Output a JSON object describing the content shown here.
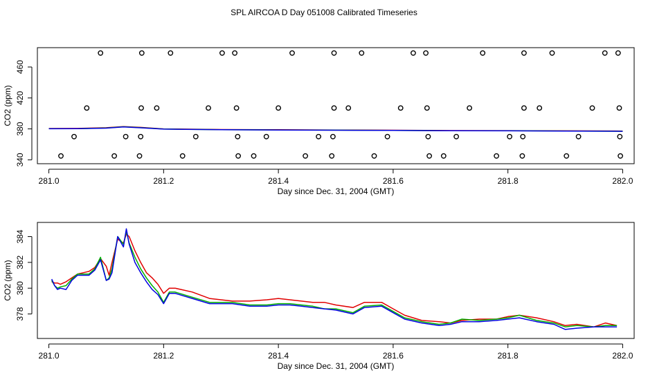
{
  "title": "SPL AIRCOA D  Day 051008  Calibrated Timeseries",
  "colors": {
    "red": "#e00000",
    "green": "#00b000",
    "blue": "#0000e0",
    "axis": "#000000"
  },
  "chart_data": [
    {
      "type": "line+scatter",
      "xlabel": "Day since Dec. 31, 2004 (GMT)",
      "ylabel": "CO2 (ppm)",
      "xlim": [
        280.98,
        282.02
      ],
      "ylim": [
        335,
        485
      ],
      "xticks": [
        281.0,
        281.2,
        281.4,
        281.6,
        281.8,
        282.0
      ],
      "xtick_labels": [
        "281.0",
        "281.2",
        "281.4",
        "281.6",
        "281.8",
        "282.0"
      ],
      "yticks": [
        340,
        380,
        420,
        460
      ],
      "ytick_labels": [
        "340",
        "380",
        "420",
        "460"
      ],
      "scatter": {
        "marker": "open-circle",
        "points": [
          [
            281.09,
            478
          ],
          [
            281.162,
            478
          ],
          [
            281.212,
            478
          ],
          [
            281.302,
            478
          ],
          [
            281.324,
            478
          ],
          [
            281.424,
            478
          ],
          [
            281.497,
            478
          ],
          [
            281.545,
            478
          ],
          [
            281.635,
            478
          ],
          [
            281.657,
            478
          ],
          [
            281.756,
            478
          ],
          [
            281.828,
            478
          ],
          [
            281.877,
            478
          ],
          [
            281.969,
            478
          ],
          [
            281.992,
            478
          ],
          [
            281.066,
            407
          ],
          [
            281.161,
            407
          ],
          [
            281.188,
            407
          ],
          [
            281.278,
            407
          ],
          [
            281.327,
            407
          ],
          [
            281.4,
            407
          ],
          [
            281.497,
            407
          ],
          [
            281.522,
            407
          ],
          [
            281.613,
            407
          ],
          [
            281.659,
            407
          ],
          [
            281.733,
            407
          ],
          [
            281.828,
            407
          ],
          [
            281.855,
            407
          ],
          [
            281.947,
            407
          ],
          [
            281.994,
            407
          ],
          [
            281.044,
            370
          ],
          [
            281.134,
            370
          ],
          [
            281.16,
            370
          ],
          [
            281.256,
            370
          ],
          [
            281.329,
            370
          ],
          [
            281.379,
            370
          ],
          [
            281.47,
            370
          ],
          [
            281.495,
            370
          ],
          [
            281.59,
            370
          ],
          [
            281.661,
            370
          ],
          [
            281.71,
            370
          ],
          [
            281.803,
            370
          ],
          [
            281.826,
            370
          ],
          [
            281.923,
            370
          ],
          [
            281.995,
            370
          ],
          [
            281.021,
            345
          ],
          [
            281.114,
            345
          ],
          [
            281.158,
            345
          ],
          [
            281.233,
            345
          ],
          [
            281.33,
            345
          ],
          [
            281.357,
            345
          ],
          [
            281.447,
            345
          ],
          [
            281.493,
            345
          ],
          [
            281.567,
            345
          ],
          [
            281.663,
            345
          ],
          [
            281.688,
            345
          ],
          [
            281.78,
            345
          ],
          [
            281.825,
            345
          ],
          [
            281.902,
            345
          ],
          [
            281.996,
            345
          ]
        ]
      },
      "series": [
        {
          "name": "red",
          "color": "#e00000",
          "x": [
            281.0,
            281.05,
            281.1,
            281.13,
            281.16,
            281.2,
            281.3,
            281.4,
            281.5,
            281.6,
            281.7,
            281.8,
            281.9,
            282.0
          ],
          "y": [
            380.5,
            380.6,
            381.5,
            383.0,
            382.0,
            380.0,
            379.2,
            378.9,
            378.6,
            378.3,
            377.9,
            377.8,
            377.5,
            377.2
          ]
        },
        {
          "name": "green",
          "color": "#00b000",
          "x": [
            281.0,
            281.05,
            281.1,
            281.13,
            281.16,
            281.2,
            281.3,
            281.4,
            281.5,
            281.6,
            281.7,
            281.8,
            281.9,
            282.0
          ],
          "y": [
            380.3,
            380.4,
            381.2,
            382.8,
            381.6,
            379.8,
            379.0,
            378.7,
            378.4,
            378.1,
            377.7,
            377.6,
            377.3,
            377.0
          ]
        },
        {
          "name": "blue",
          "color": "#0000e0",
          "x": [
            281.0,
            281.05,
            281.1,
            281.13,
            281.16,
            281.2,
            281.3,
            281.4,
            281.5,
            281.6,
            281.7,
            281.8,
            281.9,
            282.0
          ],
          "y": [
            380.2,
            380.3,
            381.0,
            382.6,
            381.4,
            379.7,
            378.9,
            378.6,
            378.3,
            378.0,
            377.6,
            377.5,
            377.2,
            376.9
          ]
        }
      ]
    },
    {
      "type": "line",
      "xlabel": "Day since Dec. 31, 2004 (GMT)",
      "ylabel": "CO2 (ppm)",
      "xlim": [
        280.98,
        282.02
      ],
      "ylim": [
        376.1,
        385.1
      ],
      "xticks": [
        281.0,
        281.2,
        281.4,
        281.6,
        281.8,
        282.0
      ],
      "xtick_labels": [
        "281.0",
        "281.2",
        "281.4",
        "281.6",
        "281.8",
        "282.0"
      ],
      "yticks": [
        378,
        380,
        382,
        384
      ],
      "ytick_labels": [
        "378",
        "380",
        "382",
        "384"
      ],
      "series": [
        {
          "name": "red",
          "color": "#e00000",
          "x": [
            281.005,
            281.01,
            281.015,
            281.02,
            281.03,
            281.04,
            281.05,
            281.06,
            281.07,
            281.08,
            281.09,
            281.1,
            281.105,
            281.11,
            281.12,
            281.13,
            281.135,
            281.14,
            281.15,
            281.16,
            281.17,
            281.18,
            281.19,
            281.2,
            281.21,
            281.22,
            281.25,
            281.28,
            281.3,
            281.32,
            281.35,
            281.38,
            281.4,
            281.42,
            281.44,
            281.46,
            281.48,
            281.5,
            281.53,
            281.55,
            281.58,
            281.6,
            281.62,
            281.65,
            281.68,
            281.7,
            281.72,
            281.75,
            281.78,
            281.8,
            281.82,
            281.85,
            281.88,
            281.9,
            281.92,
            281.95,
            281.97,
            281.99
          ],
          "y": [
            380.5,
            380.4,
            380.4,
            380.3,
            380.5,
            380.8,
            381.1,
            381.2,
            381.3,
            381.6,
            382.3,
            381.7,
            381.0,
            382.0,
            383.8,
            383.5,
            384.2,
            384.0,
            382.9,
            382.0,
            381.2,
            380.8,
            380.3,
            379.6,
            380.0,
            380.0,
            379.7,
            379.2,
            379.1,
            379.0,
            379.0,
            379.1,
            379.2,
            379.1,
            379.0,
            378.9,
            378.9,
            378.7,
            378.5,
            378.9,
            378.9,
            378.4,
            377.9,
            377.5,
            377.4,
            377.3,
            377.5,
            377.6,
            377.6,
            377.8,
            377.9,
            377.7,
            377.4,
            377.1,
            377.2,
            377.0,
            377.3,
            377.1
          ]
        },
        {
          "name": "green",
          "color": "#00b000",
          "x": [
            281.005,
            281.01,
            281.015,
            281.02,
            281.03,
            281.04,
            281.05,
            281.06,
            281.07,
            281.08,
            281.09,
            281.1,
            281.105,
            281.11,
            281.12,
            281.13,
            281.135,
            281.14,
            281.15,
            281.16,
            281.17,
            281.18,
            281.19,
            281.2,
            281.21,
            281.22,
            281.25,
            281.28,
            281.3,
            281.32,
            281.35,
            281.38,
            281.4,
            281.42,
            281.44,
            281.46,
            281.48,
            281.5,
            281.53,
            281.55,
            281.58,
            281.6,
            281.62,
            281.65,
            281.68,
            281.7,
            281.72,
            281.75,
            281.78,
            281.8,
            281.82,
            281.85,
            281.88,
            281.9,
            281.92,
            281.95,
            281.97,
            281.99
          ],
          "y": [
            380.6,
            380.2,
            380.0,
            380.1,
            380.2,
            380.7,
            381.1,
            381.1,
            381.1,
            381.5,
            382.4,
            380.6,
            380.8,
            381.5,
            384.0,
            383.4,
            384.4,
            383.5,
            382.4,
            381.5,
            380.8,
            380.2,
            379.7,
            378.9,
            379.7,
            379.7,
            379.3,
            378.9,
            378.9,
            378.9,
            378.7,
            378.7,
            378.8,
            378.8,
            378.7,
            378.6,
            378.4,
            378.4,
            378.1,
            378.6,
            378.7,
            378.2,
            377.7,
            377.4,
            377.2,
            377.3,
            377.6,
            377.5,
            377.6,
            377.7,
            377.9,
            377.5,
            377.3,
            377.0,
            377.1,
            377.0,
            377.1,
            377.1
          ]
        },
        {
          "name": "blue",
          "color": "#0000e0",
          "x": [
            281.005,
            281.01,
            281.015,
            281.02,
            281.03,
            281.04,
            281.05,
            281.06,
            281.07,
            281.08,
            281.09,
            281.1,
            281.105,
            281.11,
            281.12,
            281.13,
            281.135,
            281.14,
            281.15,
            281.16,
            281.17,
            281.18,
            281.19,
            281.2,
            281.21,
            281.22,
            281.25,
            281.28,
            281.3,
            281.32,
            281.35,
            281.38,
            281.4,
            281.42,
            281.44,
            281.46,
            281.48,
            281.5,
            281.53,
            281.55,
            281.58,
            281.6,
            281.62,
            281.65,
            281.68,
            281.7,
            281.72,
            281.75,
            281.78,
            281.8,
            281.82,
            281.85,
            281.88,
            281.9,
            281.92,
            281.95,
            281.97,
            281.99
          ],
          "y": [
            380.7,
            380.2,
            379.9,
            380.0,
            379.9,
            380.6,
            381.0,
            381.0,
            381.0,
            381.4,
            382.2,
            380.6,
            380.7,
            381.2,
            384.0,
            383.2,
            384.6,
            383.4,
            382.0,
            381.2,
            380.5,
            379.9,
            379.5,
            378.8,
            379.6,
            379.6,
            379.2,
            378.8,
            378.8,
            378.8,
            378.6,
            378.6,
            378.7,
            378.7,
            378.6,
            378.5,
            378.4,
            378.3,
            378.0,
            378.5,
            378.6,
            378.1,
            377.6,
            377.3,
            377.1,
            377.2,
            377.4,
            377.4,
            377.5,
            377.6,
            377.7,
            377.4,
            377.2,
            376.8,
            376.9,
            377.0,
            377.0,
            377.0
          ]
        }
      ]
    }
  ]
}
